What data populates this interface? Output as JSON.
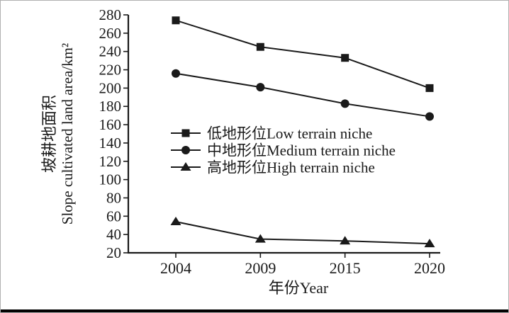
{
  "figure": {
    "background": "#ffffff",
    "border_color": "#b0b0b0",
    "bottom_rule_color": "#030303",
    "ink_color": "#1a1a1a"
  },
  "chart_data": {
    "type": "line",
    "title": "",
    "categories": [
      "2004",
      "2009",
      "2015",
      "2020"
    ],
    "series": [
      {
        "name": "低地形位Low terrain niche",
        "marker": "square",
        "color": "#1a1a1a",
        "values": [
          274,
          245,
          233,
          200
        ]
      },
      {
        "name": "中地形位Medium terrain niche",
        "marker": "circle",
        "color": "#1a1a1a",
        "values": [
          216,
          201,
          183,
          169
        ]
      },
      {
        "name": "高地形位High terrain niche",
        "marker": "triangle",
        "color": "#1a1a1a",
        "values": [
          54,
          35,
          33,
          30
        ]
      }
    ],
    "xlabel": "年份Year",
    "ylabel_zh": "坡耕地面积",
    "ylabel_en": "Slope cultivated land area/km²",
    "ylim": [
      20,
      280
    ],
    "y_ticks": [
      20,
      40,
      60,
      80,
      100,
      120,
      140,
      160,
      180,
      200,
      220,
      240,
      260,
      280
    ],
    "grid": false,
    "legend_position": "inside-center-left"
  }
}
